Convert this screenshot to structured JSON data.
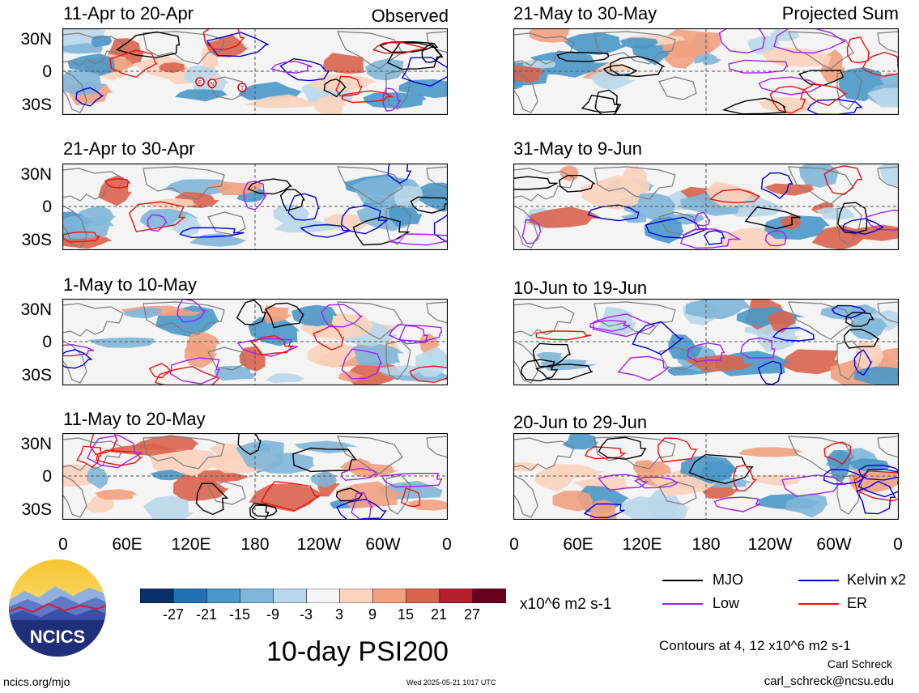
{
  "panels": {
    "left": [
      {
        "title": "11-Apr to 20-Apr",
        "tag": "Observed"
      },
      {
        "title": "21-Apr to 30-Apr",
        "tag": ""
      },
      {
        "title": "1-May to 10-May",
        "tag": ""
      },
      {
        "title": "11-May to 20-May",
        "tag": ""
      }
    ],
    "right": [
      {
        "title": "21-May to 30-May",
        "tag": "Projected Sum"
      },
      {
        "title": "31-May to 9-Jun",
        "tag": ""
      },
      {
        "title": "10-Jun to 19-Jun",
        "tag": ""
      },
      {
        "title": "20-Jun to 29-Jun",
        "tag": ""
      }
    ]
  },
  "axes": {
    "lat_labels": [
      "30N",
      "0",
      "30S"
    ],
    "lon_labels": [
      "0",
      "60E",
      "120E",
      "180",
      "120W",
      "60W",
      "0"
    ]
  },
  "colorbar": {
    "ticks": [
      "-27",
      "-21",
      "-15",
      "-9",
      "-3",
      "3",
      "9",
      "15",
      "21",
      "27"
    ],
    "colors": [
      "#08306b",
      "#2171b5",
      "#4a98c9",
      "#7fb6d9",
      "#b9d7ea",
      "#f4f4f4",
      "#fbd3bd",
      "#f2a17f",
      "#d9644e",
      "#b51f2e",
      "#67001f"
    ],
    "units": "x10^6 m2 s-1"
  },
  "legend": [
    {
      "label": "MJO",
      "color": "#000000"
    },
    {
      "label": "Kelvin x2",
      "color": "#0000dd"
    },
    {
      "label": "Low",
      "color": "#a020f0"
    },
    {
      "label": "ER",
      "color": "#ee1111"
    }
  ],
  "title": "10-day PSI200",
  "contours_note": "Contours at 4, 12 x10^6 m2 s-1",
  "author": "Carl Schreck",
  "email": "carl_schreck@ncsu.edu",
  "site": "ncics.org/mjo",
  "timestamp": "Wed 2025-05-21 1017 UTC",
  "logo_text": "NCICS",
  "tc_markers": [
    "E",
    "N",
    "T"
  ]
}
